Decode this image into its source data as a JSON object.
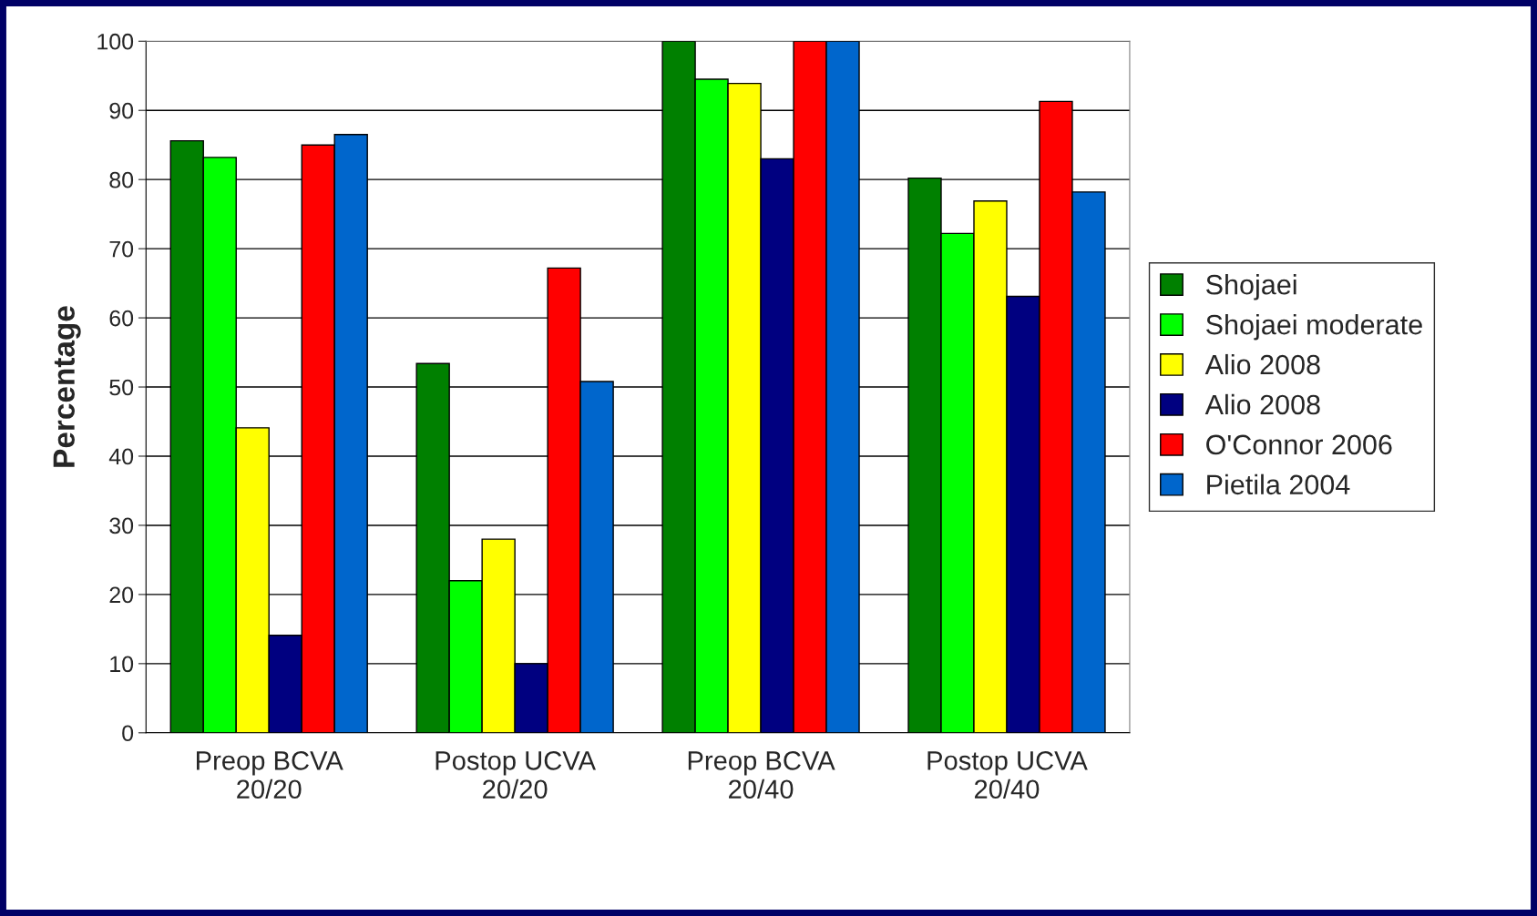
{
  "chart_data": {
    "type": "bar",
    "ylabel": "Percentage",
    "categories": [
      "Preop BCVA\n20/20",
      "Postop UCVA\n20/20",
      "Preop BCVA\n20/40",
      "Postop UCVA\n20/40"
    ],
    "series": [
      {
        "name": "Shojaei",
        "color": "#008000",
        "values": [
          85.6,
          53.4,
          100,
          80.2
        ]
      },
      {
        "name": "Shojaei moderate",
        "color": "#00ff00",
        "values": [
          83.2,
          22.0,
          94.5,
          72.2
        ]
      },
      {
        "name": "Alio 2008",
        "color": "#ffff00",
        "values": [
          44.1,
          28.0,
          93.9,
          76.9
        ]
      },
      {
        "name": "Alio 2008",
        "color": "#000080",
        "values": [
          14.1,
          10.0,
          83.0,
          63.1
        ]
      },
      {
        "name": "O'Connor 2006",
        "color": "#ff0000",
        "values": [
          85.0,
          67.2,
          100,
          91.3
        ]
      },
      {
        "name": "Pietila 2004",
        "color": "#0066cc",
        "values": [
          86.5,
          50.8,
          100,
          78.2
        ]
      }
    ],
    "ylim": [
      0,
      100
    ],
    "yticks": [
      0,
      10,
      20,
      30,
      40,
      50,
      60,
      70,
      80,
      90,
      100
    ],
    "grid": "y",
    "legend": "right"
  }
}
